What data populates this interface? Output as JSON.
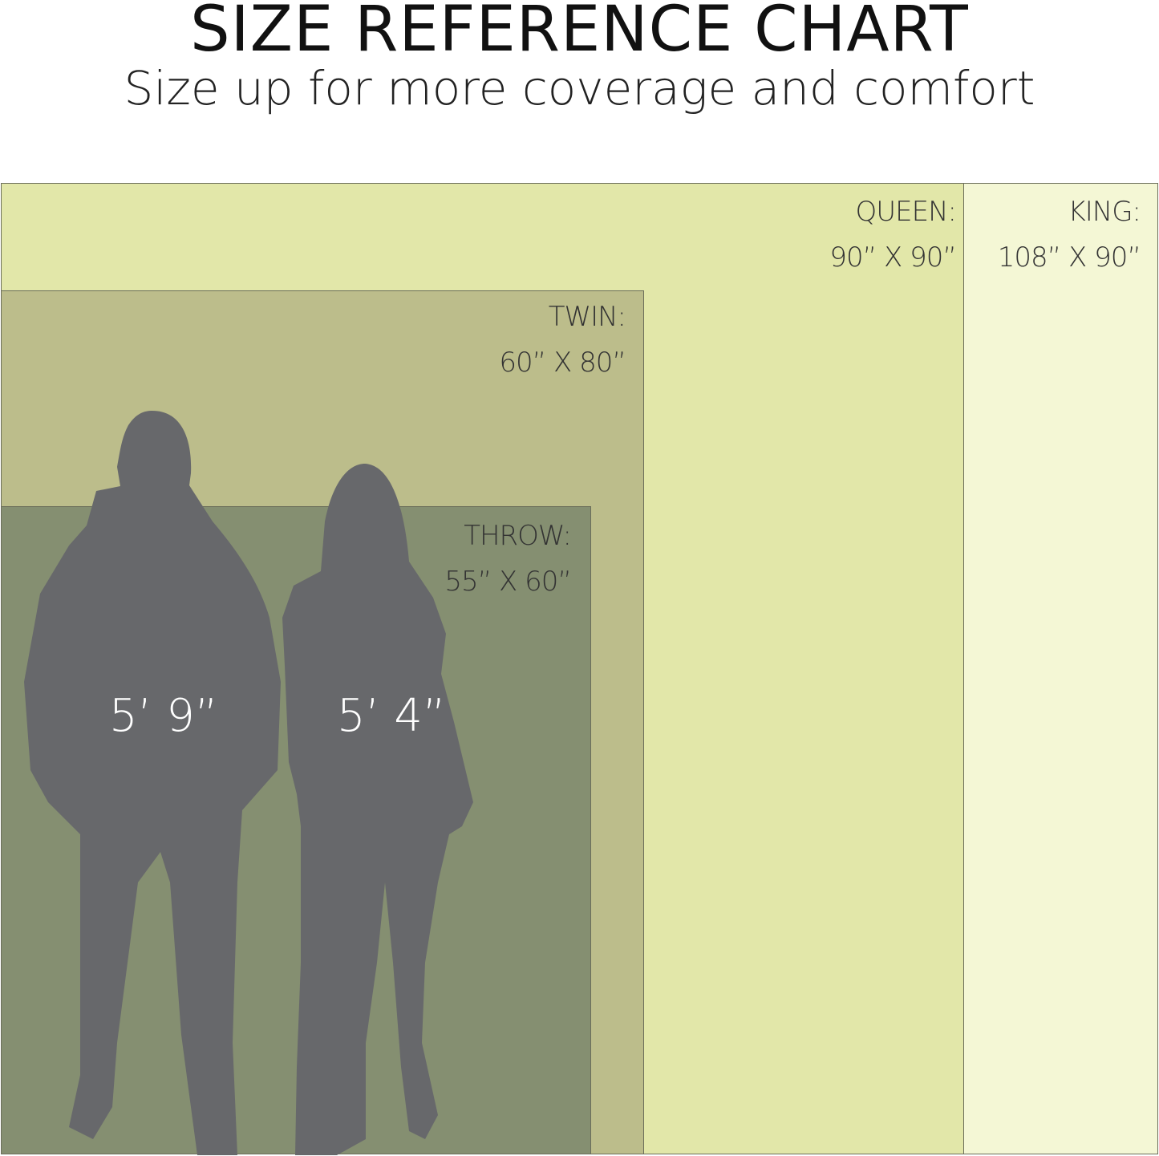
{
  "header": {
    "title": "SIZE REFERENCE CHART",
    "subtitle": "Size up for more coverage and comfort"
  },
  "sizes": [
    {
      "name": "KING:",
      "dims": "108” X 90”",
      "color": "#f4f7d5"
    },
    {
      "name": "QUEEN:",
      "dims": "90” X 90”",
      "color": "#e2e7a9"
    },
    {
      "name": "TWIN:",
      "dims": "60” X 80”",
      "color": "#bcbd8b"
    },
    {
      "name": "THROW:",
      "dims": "55” X 60”",
      "color": "#858f71"
    }
  ],
  "people": [
    {
      "height": "5’ 9”",
      "icon": "man-silhouette-icon"
    },
    {
      "height": "5’ 4”",
      "icon": "woman-silhouette-icon"
    }
  ],
  "colors": {
    "silhouette": "#67686b"
  }
}
